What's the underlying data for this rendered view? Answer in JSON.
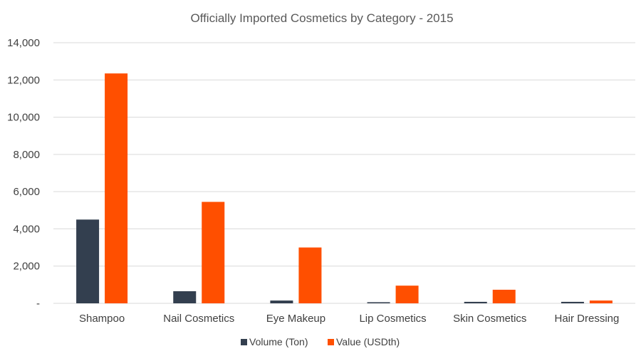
{
  "chart_data": {
    "type": "bar",
    "title": "Officially Imported Cosmetics by Category - 2015",
    "categories": [
      "Shampoo",
      "Nail Cosmetics",
      "Eye Makeup",
      "Lip Cosmetics",
      "Skin Cosmetics",
      "Hair Dressing"
    ],
    "series": [
      {
        "name": "Volume (Ton)",
        "color": "#333f4f",
        "values": [
          4500,
          650,
          150,
          60,
          80,
          80
        ]
      },
      {
        "name": "Value (USDth)",
        "color": "#ff4f00",
        "values": [
          12350,
          5450,
          3000,
          950,
          730,
          150
        ]
      }
    ],
    "ylim": [
      0,
      14000
    ],
    "yticks": [
      0,
      2000,
      4000,
      6000,
      8000,
      10000,
      12000,
      14000
    ],
    "ytick_labels": [
      "-",
      "2,000",
      "4,000",
      "6,000",
      "8,000",
      "10,000",
      "12,000",
      "14,000"
    ],
    "grid": true,
    "legend_position": "bottom"
  }
}
